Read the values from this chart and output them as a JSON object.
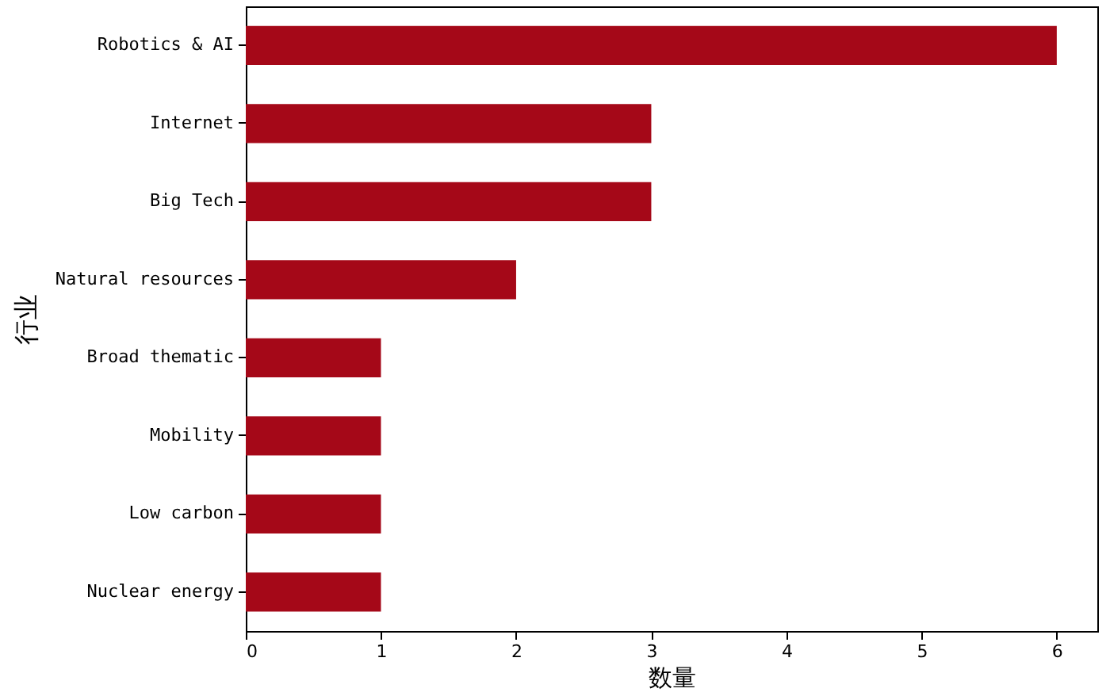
{
  "chart_data": {
    "type": "bar",
    "orientation": "horizontal",
    "xlabel": "数量",
    "ylabel": "行业",
    "categories": [
      "Robotics & AI",
      "Internet",
      "Big Tech",
      "Natural resources",
      "Broad thematic",
      "Mobility",
      "Low carbon",
      "Nuclear energy"
    ],
    "values": [
      6,
      3,
      3,
      2,
      1,
      1,
      1,
      1
    ],
    "color": "#a50818",
    "xlim": [
      0,
      6.3
    ],
    "xticks": [
      0,
      1,
      2,
      3,
      4,
      5,
      6
    ],
    "grid": false
  }
}
